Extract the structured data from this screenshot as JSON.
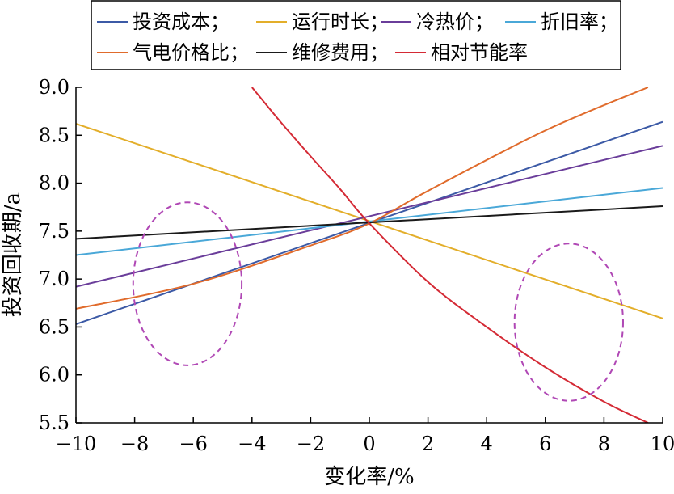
{
  "chart_data": {
    "type": "line",
    "title": "",
    "xlabel": "变化率/%",
    "ylabel": "投资回收期/a",
    "xlim": [
      -10,
      10
    ],
    "ylim": [
      5.5,
      9.0
    ],
    "x_ticks": [
      -10,
      -8,
      -6,
      -4,
      -2,
      0,
      2,
      4,
      6,
      8,
      10
    ],
    "x_tick_labels": [
      "−10",
      "−8",
      "−6",
      "−4",
      "−2",
      "0",
      "2",
      "4",
      "6",
      "8",
      "10"
    ],
    "y_ticks": [
      5.5,
      6.0,
      6.5,
      7.0,
      7.5,
      8.0,
      8.5,
      9.0
    ],
    "y_tick_labels": [
      "5.5",
      "6.0",
      "6.5",
      "7.0",
      "7.5",
      "8.0",
      "8.5",
      "9.0"
    ],
    "grid": false,
    "legend_position": "top",
    "series": [
      {
        "name": "投资成本；",
        "color": "#3c5aa6",
        "points": [
          [
            -10,
            6.53
          ],
          [
            10,
            8.64
          ]
        ]
      },
      {
        "name": "运行时长；",
        "color": "#e3ae2a",
        "points": [
          [
            -10,
            8.62
          ],
          [
            10,
            6.59
          ]
        ]
      },
      {
        "name": "冷热价；",
        "color": "#6a3d9a",
        "points": [
          [
            -10,
            6.92
          ],
          [
            10,
            8.39
          ]
        ]
      },
      {
        "name": "折旧率；",
        "color": "#4aa8d8",
        "points": [
          [
            -10,
            7.25
          ],
          [
            10,
            7.95
          ]
        ]
      },
      {
        "name": "气电价格比；",
        "color": "#e06b2c",
        "points": [
          [
            -10,
            6.69
          ],
          [
            -6,
            6.95
          ],
          [
            -2,
            7.35
          ],
          [
            0,
            7.58
          ],
          [
            2,
            7.92
          ],
          [
            6,
            8.55
          ],
          [
            9.5,
            9.0
          ]
        ]
      },
      {
        "name": "维修费用；",
        "color": "#1a1a1a",
        "points": [
          [
            -10,
            7.42
          ],
          [
            10,
            7.76
          ]
        ]
      },
      {
        "name": "相对节能率",
        "color": "#d42a35",
        "points": [
          [
            -4,
            9.0
          ],
          [
            -3,
            8.63
          ],
          [
            -2,
            8.28
          ],
          [
            -1,
            7.94
          ],
          [
            0,
            7.58
          ],
          [
            2,
            6.97
          ],
          [
            4,
            6.5
          ],
          [
            6,
            6.08
          ],
          [
            8,
            5.72
          ],
          [
            9.5,
            5.5
          ]
        ]
      }
    ],
    "annotations": [
      {
        "type": "dashed-ellipse",
        "color": "#b048b5",
        "cx": -6.2,
        "cy": 6.95,
        "rx": 1.85,
        "ry": 0.85
      },
      {
        "type": "dashed-ellipse",
        "color": "#b048b5",
        "cx": 6.8,
        "cy": 6.55,
        "rx": 1.85,
        "ry": 0.82
      }
    ]
  }
}
